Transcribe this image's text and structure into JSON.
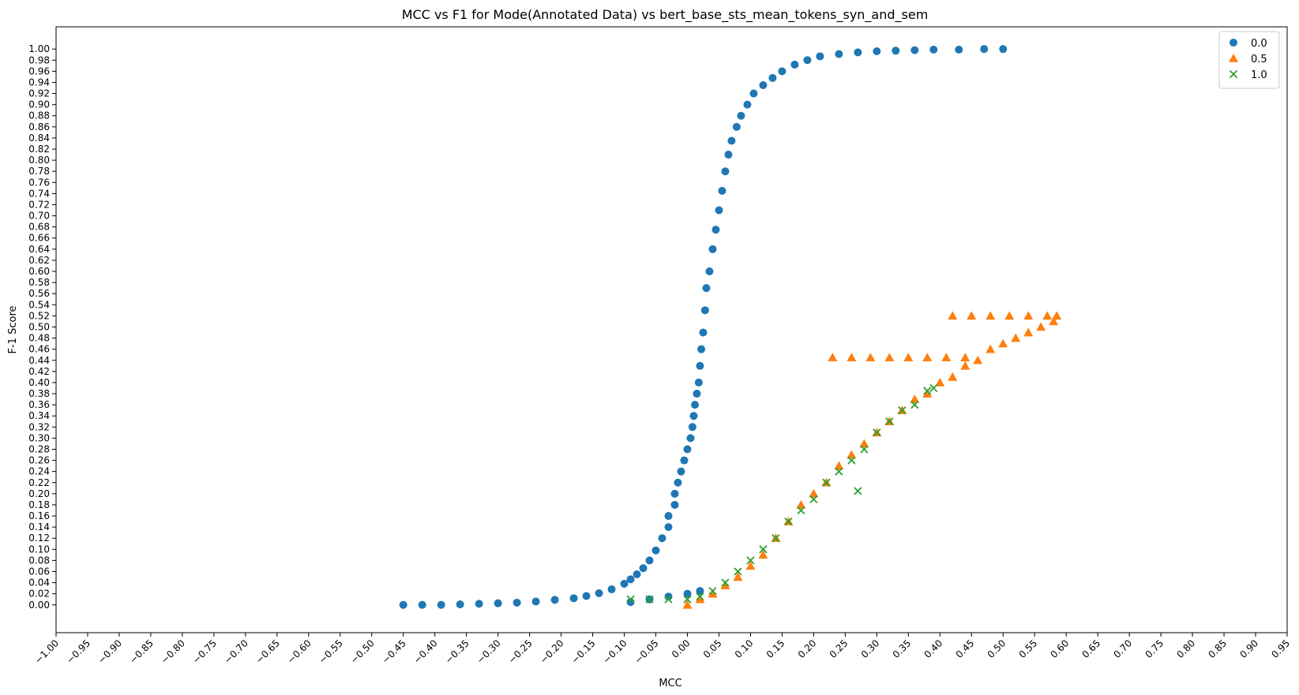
{
  "chart_data": {
    "type": "scatter",
    "title": "MCC vs F1 for Mode(Annotated Data) vs bert_base_sts_mean_tokens_syn_and_sem",
    "xlabel": "MCC",
    "ylabel": "F-1 Score",
    "xlim": [
      -1.0,
      0.95
    ],
    "ylim": [
      -0.05,
      1.04
    ],
    "xticks": [
      "−1.00",
      "−0.95",
      "−0.90",
      "−0.85",
      "−0.80",
      "−0.75",
      "−0.70",
      "−0.65",
      "−0.60",
      "−0.55",
      "−0.50",
      "−0.45",
      "−0.40",
      "−0.35",
      "−0.30",
      "−0.25",
      "−0.20",
      "−0.15",
      "−0.10",
      "−0.05",
      "0.00",
      "0.05",
      "0.10",
      "0.15",
      "0.20",
      "0.25",
      "0.30",
      "0.35",
      "0.40",
      "0.45",
      "0.50",
      "0.55",
      "0.60",
      "0.65",
      "0.70",
      "0.75",
      "0.80",
      "0.85",
      "0.90",
      "0.95"
    ],
    "yticks": [
      "0.00",
      "0.02",
      "0.04",
      "0.06",
      "0.08",
      "0.10",
      "0.12",
      "0.14",
      "0.16",
      "0.18",
      "0.20",
      "0.22",
      "0.24",
      "0.26",
      "0.28",
      "0.30",
      "0.32",
      "0.34",
      "0.36",
      "0.38",
      "0.40",
      "0.42",
      "0.44",
      "0.46",
      "0.48",
      "0.50",
      "0.52",
      "0.54",
      "0.56",
      "0.58",
      "0.60",
      "0.62",
      "0.64",
      "0.66",
      "0.68",
      "0.70",
      "0.72",
      "0.74",
      "0.76",
      "0.78",
      "0.80",
      "0.82",
      "0.84",
      "0.86",
      "0.88",
      "0.90",
      "0.92",
      "0.94",
      "0.96",
      "0.98",
      "1.00"
    ],
    "x_rotation": 45,
    "legend_position": "top-right",
    "grid": false,
    "series": [
      {
        "name": "0.0",
        "marker": "circle",
        "color": "#1f77b4",
        "points": [
          [
            -0.45,
            0.0
          ],
          [
            -0.42,
            0.0
          ],
          [
            -0.39,
            0.0
          ],
          [
            -0.36,
            0.001
          ],
          [
            -0.33,
            0.002
          ],
          [
            -0.3,
            0.003
          ],
          [
            -0.27,
            0.004
          ],
          [
            -0.24,
            0.006
          ],
          [
            -0.21,
            0.009
          ],
          [
            -0.18,
            0.012
          ],
          [
            -0.16,
            0.016
          ],
          [
            -0.14,
            0.021
          ],
          [
            -0.12,
            0.028
          ],
          [
            -0.1,
            0.038
          ],
          [
            -0.09,
            0.046
          ],
          [
            -0.08,
            0.055
          ],
          [
            -0.07,
            0.066
          ],
          [
            -0.06,
            0.08
          ],
          [
            -0.05,
            0.098
          ],
          [
            -0.09,
            0.005
          ],
          [
            -0.06,
            0.01
          ],
          [
            -0.03,
            0.015
          ],
          [
            0.0,
            0.02
          ],
          [
            0.02,
            0.025
          ],
          [
            -0.04,
            0.12
          ],
          [
            -0.03,
            0.14
          ],
          [
            -0.03,
            0.16
          ],
          [
            -0.02,
            0.18
          ],
          [
            -0.02,
            0.2
          ],
          [
            -0.015,
            0.22
          ],
          [
            -0.01,
            0.24
          ],
          [
            -0.005,
            0.26
          ],
          [
            0.0,
            0.28
          ],
          [
            0.005,
            0.3
          ],
          [
            0.008,
            0.32
          ],
          [
            0.01,
            0.34
          ],
          [
            0.012,
            0.36
          ],
          [
            0.015,
            0.38
          ],
          [
            0.018,
            0.4
          ],
          [
            0.02,
            0.43
          ],
          [
            0.022,
            0.46
          ],
          [
            0.025,
            0.49
          ],
          [
            0.028,
            0.53
          ],
          [
            0.03,
            0.57
          ],
          [
            0.035,
            0.6
          ],
          [
            0.04,
            0.64
          ],
          [
            0.045,
            0.675
          ],
          [
            0.05,
            0.71
          ],
          [
            0.055,
            0.745
          ],
          [
            0.06,
            0.78
          ],
          [
            0.065,
            0.81
          ],
          [
            0.07,
            0.835
          ],
          [
            0.078,
            0.86
          ],
          [
            0.085,
            0.88
          ],
          [
            0.095,
            0.9
          ],
          [
            0.105,
            0.92
          ],
          [
            0.12,
            0.935
          ],
          [
            0.135,
            0.948
          ],
          [
            0.15,
            0.96
          ],
          [
            0.17,
            0.972
          ],
          [
            0.19,
            0.98
          ],
          [
            0.21,
            0.987
          ],
          [
            0.24,
            0.991
          ],
          [
            0.27,
            0.994
          ],
          [
            0.3,
            0.996
          ],
          [
            0.33,
            0.997
          ],
          [
            0.36,
            0.998
          ],
          [
            0.39,
            0.999
          ],
          [
            0.43,
            0.999
          ],
          [
            0.47,
            1.0
          ],
          [
            0.5,
            1.0
          ]
        ]
      },
      {
        "name": "0.5",
        "marker": "triangle",
        "color": "#ff7f0e",
        "points": [
          [
            0.0,
            0.0
          ],
          [
            0.02,
            0.01
          ],
          [
            0.04,
            0.02
          ],
          [
            0.06,
            0.035
          ],
          [
            0.08,
            0.05
          ],
          [
            0.1,
            0.07
          ],
          [
            0.12,
            0.09
          ],
          [
            0.14,
            0.12
          ],
          [
            0.16,
            0.15
          ],
          [
            0.18,
            0.18
          ],
          [
            0.2,
            0.2
          ],
          [
            0.22,
            0.22
          ],
          [
            0.24,
            0.25
          ],
          [
            0.26,
            0.27
          ],
          [
            0.28,
            0.29
          ],
          [
            0.3,
            0.31
          ],
          [
            0.32,
            0.33
          ],
          [
            0.34,
            0.35
          ],
          [
            0.36,
            0.37
          ],
          [
            0.38,
            0.38
          ],
          [
            0.4,
            0.4
          ],
          [
            0.42,
            0.41
          ],
          [
            0.44,
            0.43
          ],
          [
            0.46,
            0.44
          ],
          [
            0.48,
            0.46
          ],
          [
            0.5,
            0.47
          ],
          [
            0.52,
            0.48
          ],
          [
            0.54,
            0.49
          ],
          [
            0.56,
            0.5
          ],
          [
            0.58,
            0.51
          ],
          [
            0.23,
            0.445
          ],
          [
            0.26,
            0.445
          ],
          [
            0.29,
            0.445
          ],
          [
            0.32,
            0.445
          ],
          [
            0.35,
            0.445
          ],
          [
            0.38,
            0.445
          ],
          [
            0.41,
            0.445
          ],
          [
            0.44,
            0.445
          ],
          [
            0.42,
            0.52
          ],
          [
            0.45,
            0.52
          ],
          [
            0.48,
            0.52
          ],
          [
            0.51,
            0.52
          ],
          [
            0.54,
            0.52
          ],
          [
            0.57,
            0.52
          ],
          [
            0.585,
            0.52
          ]
        ]
      },
      {
        "name": "1.0",
        "marker": "x",
        "color": "#2ca02c",
        "points": [
          [
            -0.09,
            0.01
          ],
          [
            -0.06,
            0.01
          ],
          [
            -0.03,
            0.01
          ],
          [
            0.0,
            0.01
          ],
          [
            0.02,
            0.015
          ],
          [
            0.04,
            0.025
          ],
          [
            0.06,
            0.04
          ],
          [
            0.08,
            0.06
          ],
          [
            0.1,
            0.08
          ],
          [
            0.12,
            0.1
          ],
          [
            0.14,
            0.12
          ],
          [
            0.16,
            0.15
          ],
          [
            0.18,
            0.17
          ],
          [
            0.2,
            0.19
          ],
          [
            0.22,
            0.22
          ],
          [
            0.24,
            0.24
          ],
          [
            0.26,
            0.26
          ],
          [
            0.28,
            0.28
          ],
          [
            0.3,
            0.31
          ],
          [
            0.32,
            0.33
          ],
          [
            0.34,
            0.35
          ],
          [
            0.36,
            0.36
          ],
          [
            0.38,
            0.385
          ],
          [
            0.39,
            0.39
          ],
          [
            0.27,
            0.205
          ]
        ]
      }
    ]
  }
}
